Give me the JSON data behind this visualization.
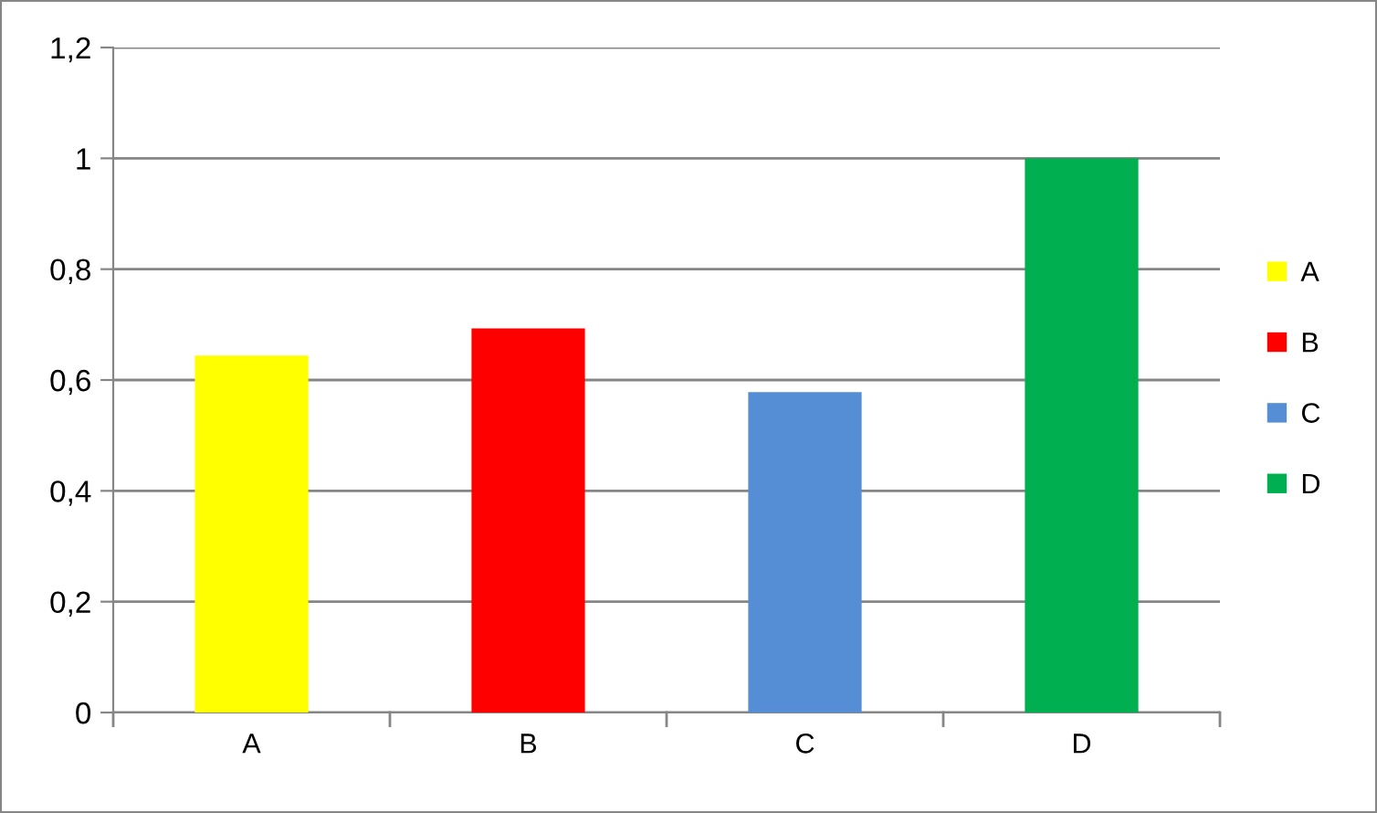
{
  "chart_data": {
    "type": "bar",
    "categories": [
      "A",
      "B",
      "C",
      "D"
    ],
    "series": [
      {
        "name": "A",
        "color": "#ffff00",
        "values": [
          0.644,
          null,
          null,
          null
        ]
      },
      {
        "name": "B",
        "color": "#ff0000",
        "values": [
          null,
          0.693,
          null,
          null
        ]
      },
      {
        "name": "C",
        "color": "#558ed5",
        "values": [
          null,
          null,
          0.578,
          null
        ]
      },
      {
        "name": "D",
        "color": "#00b050",
        "values": [
          null,
          null,
          null,
          1.0
        ]
      }
    ],
    "ylim": [
      0,
      1.2
    ],
    "yticks": [
      0,
      {
        "value": 0.2,
        "label": "0,2"
      },
      {
        "value": 0.4,
        "label": "0,4"
      },
      {
        "value": 0.6,
        "label": "0,6"
      },
      {
        "value": 0.8,
        "label": "0,8"
      },
      1,
      {
        "value": 1.2,
        "label": "1,2"
      }
    ],
    "grid": "y",
    "legend": "right"
  }
}
